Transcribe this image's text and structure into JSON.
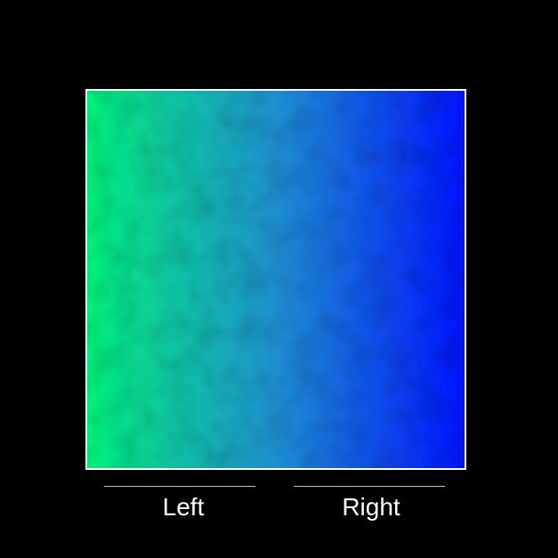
{
  "labels": {
    "left": "Left",
    "right": "Right"
  },
  "colors": {
    "background": "#000000",
    "border": "#ffffff",
    "gradient_left": "#00f07a",
    "gradient_mid": "#1f8fd0",
    "gradient_right": "#0014ff",
    "divider": "#bfbfbf"
  }
}
